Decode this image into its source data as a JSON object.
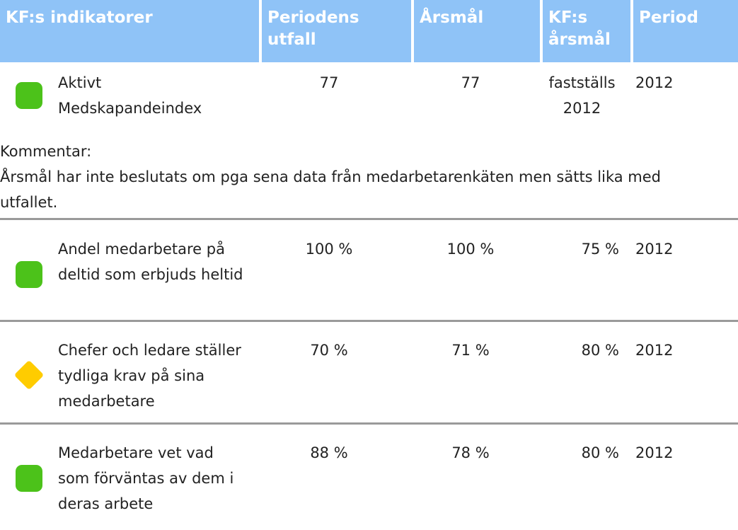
{
  "table": {
    "header": [
      "KF:s indikatorer",
      "Periodens utfall",
      "Årsmål",
      "KF:s årsmål",
      "Period"
    ],
    "rows": [
      {
        "cells": [
          "Aktivt Medskapandeindex",
          "77",
          "77",
          "fastställs 2012",
          "2012"
        ],
        "status": "green",
        "comment_label": "Kommentar:",
        "comment": "Årsmål har inte beslutats om pga sena data från medarbetarenkäten men sätts lika med utfallet."
      },
      {
        "cells": [
          "Andel medarbetare på deltid som erbjuds heltid",
          "100 %",
          "100 %",
          "75 %",
          "2012"
        ],
        "status": "green"
      },
      {
        "cells": [
          "Chefer och ledare ställer tydliga krav på sina medarbetare",
          "70 %",
          "71 %",
          "80 %",
          "2012"
        ],
        "status": "yellow"
      },
      {
        "cells": [
          "Medarbetare vet vad som förväntas av dem i deras arbete",
          "88 %",
          "78 %",
          "80 %",
          "2012"
        ],
        "status": "green"
      }
    ]
  }
}
